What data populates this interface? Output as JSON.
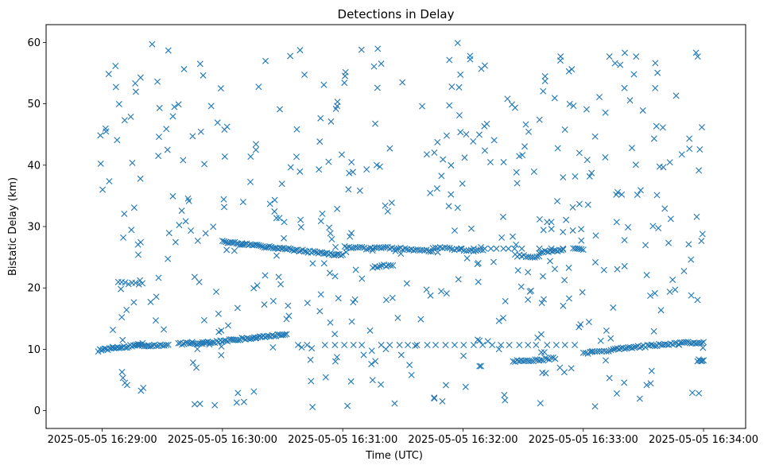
{
  "chart_data": {
    "type": "scatter",
    "title": "Detections in Delay",
    "xlabel": "Time (UTC)",
    "ylabel": "Bistatic Delay (km)",
    "marker": "x",
    "color": "#1f77b4",
    "xlim_seconds": [
      -28,
      321
    ],
    "ylim": [
      -2.9,
      62.9
    ],
    "x_ticks": [
      {
        "t": 0,
        "label": "2025-05-05 16:29:00"
      },
      {
        "t": 60,
        "label": "2025-05-05 16:30:00"
      },
      {
        "t": 120,
        "label": "2025-05-05 16:31:00"
      },
      {
        "t": 180,
        "label": "2025-05-05 16:32:00"
      },
      {
        "t": 240,
        "label": "2025-05-05 16:33:00"
      },
      {
        "t": 300,
        "label": "2025-05-05 16:34:00"
      }
    ],
    "y_ticks": [
      0,
      10,
      20,
      30,
      40,
      50,
      60
    ],
    "x_units": "seconds since 2025-05-05 16:29:00 UTC",
    "track_segments": [
      {
        "t0": -2,
        "t1": 18,
        "d0": 9.8,
        "d1": 10.7,
        "n": 26
      },
      {
        "t0": 18,
        "t1": 33,
        "d0": 10.6,
        "d1": 10.7,
        "n": 16
      },
      {
        "t0": 38,
        "t1": 50,
        "d0": 10.9,
        "d1": 11.0,
        "n": 14
      },
      {
        "t0": 50,
        "t1": 92,
        "d0": 11.0,
        "d1": 12.5,
        "n": 48
      },
      {
        "t0": 60,
        "t1": 120,
        "d0": 27.5,
        "d1": 25.3,
        "n": 70
      },
      {
        "t0": 121,
        "t1": 135,
        "d0": 26.6,
        "d1": 26.4,
        "n": 14
      },
      {
        "t0": 136,
        "t1": 165,
        "d0": 26.7,
        "d1": 26.0,
        "n": 28
      },
      {
        "t0": 165,
        "t1": 190,
        "d0": 26.6,
        "d1": 26.0,
        "n": 22
      },
      {
        "t0": 206,
        "t1": 218,
        "d0": 25.3,
        "d1": 25.0,
        "n": 12
      },
      {
        "t0": 218,
        "t1": 230,
        "d0": 25.8,
        "d1": 26.2,
        "n": 14
      },
      {
        "t0": 235,
        "t1": 240,
        "d0": 26.4,
        "d1": 26.4,
        "n": 6
      },
      {
        "t0": 205,
        "t1": 226,
        "d0": 8.0,
        "d1": 8.5,
        "n": 22
      },
      {
        "t0": 240,
        "t1": 255,
        "d0": 9.4,
        "d1": 9.8,
        "n": 14
      },
      {
        "t0": 255,
        "t1": 271,
        "d0": 10.0,
        "d1": 10.5,
        "n": 18
      },
      {
        "t0": 272,
        "t1": 300,
        "d0": 10.6,
        "d1": 11.2,
        "n": 30
      },
      {
        "t0": 297,
        "t1": 300,
        "d0": 8.2,
        "d1": 8.2,
        "n": 6
      },
      {
        "t0": 135,
        "t1": 145,
        "d0": 23.4,
        "d1": 23.8,
        "n": 10
      },
      {
        "t0": 8,
        "t1": 20,
        "d0": 20.9,
        "d1": 20.6,
        "n": 8
      }
    ],
    "horizontal_lines": [
      {
        "d": 10.7,
        "t0": 93,
        "t1": 240,
        "spacing": 4.6
      },
      {
        "d": 26.4,
        "t0": 170,
        "t1": 232,
        "spacing": 3.0
      }
    ],
    "clutter": {
      "count": 470,
      "t0": -2,
      "t1": 300,
      "d0": 0.5,
      "d1": 60.0,
      "seed": 2025
    }
  }
}
